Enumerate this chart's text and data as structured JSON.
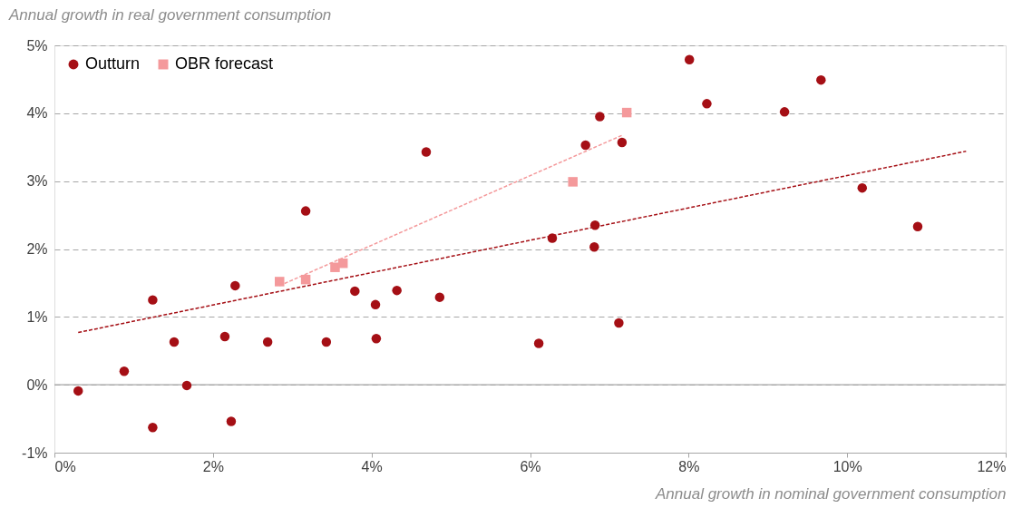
{
  "chart_data": {
    "type": "scatter",
    "ylabel": "Annual growth in real government consumption",
    "xlabel": "Annual growth in nominal government consumption",
    "xlim": [
      0,
      12
    ],
    "ylim": [
      -1,
      5
    ],
    "xticks": [
      {
        "value": 0,
        "label": "0%"
      },
      {
        "value": 2,
        "label": "2%"
      },
      {
        "value": 4,
        "label": "4%"
      },
      {
        "value": 6,
        "label": "6%"
      },
      {
        "value": 8,
        "label": "8%"
      },
      {
        "value": 10,
        "label": "10%"
      },
      {
        "value": 12,
        "label": "12%"
      }
    ],
    "yticks": [
      {
        "value": -1,
        "label": "-1%"
      },
      {
        "value": 0,
        "label": "0%"
      },
      {
        "value": 1,
        "label": "1%"
      },
      {
        "value": 2,
        "label": "2%"
      },
      {
        "value": 3,
        "label": "3%"
      },
      {
        "value": 4,
        "label": "4%"
      },
      {
        "value": 5,
        "label": "5%"
      }
    ],
    "grid": "y",
    "legend": "top left",
    "ref_lines": [
      {
        "axis": "y",
        "value": 0,
        "label": null,
        "color": "#a6a6a6",
        "line_style": "solid"
      }
    ],
    "series": [
      {
        "name": "Outturn",
        "type": "scatter",
        "marker": "circle",
        "color": "#a50f15",
        "x": [
          0.3,
          0.88,
          1.24,
          1.24,
          1.51,
          1.67,
          2.15,
          2.23,
          2.28,
          2.69,
          3.17,
          3.43,
          3.79,
          4.05,
          4.06,
          4.32,
          4.69,
          4.86,
          6.11,
          6.28,
          6.7,
          6.81,
          6.82,
          6.88,
          7.12,
          7.16,
          8.01,
          8.23,
          9.21,
          9.67,
          10.19,
          10.89
        ],
        "values": [
          -0.09,
          0.2,
          1.25,
          -0.63,
          0.63,
          -0.01,
          0.71,
          -0.54,
          1.46,
          0.63,
          2.56,
          0.63,
          1.38,
          1.18,
          0.68,
          1.39,
          3.43,
          1.29,
          0.61,
          2.16,
          3.53,
          2.03,
          2.35,
          3.95,
          0.91,
          3.57,
          4.79,
          4.14,
          4.02,
          4.49,
          2.9,
          2.33
        ]
      },
      {
        "name": "OBR forecast",
        "type": "scatter",
        "marker": "square",
        "color": "#f4999b",
        "x": [
          2.84,
          3.17,
          3.54,
          3.64,
          6.54,
          7.22
        ],
        "values": [
          1.52,
          1.55,
          1.73,
          1.79,
          2.99,
          4.01
        ]
      },
      {
        "type": "line",
        "line_style": "dashed",
        "color": "#a50f15",
        "x": [
          0.3,
          11.5
        ],
        "values": [
          0.77,
          3.44
        ]
      },
      {
        "type": "line",
        "line_style": "dashed",
        "color": "#f4999b",
        "x": [
          2.84,
          7.17
        ],
        "values": [
          1.46,
          3.68
        ]
      }
    ]
  }
}
